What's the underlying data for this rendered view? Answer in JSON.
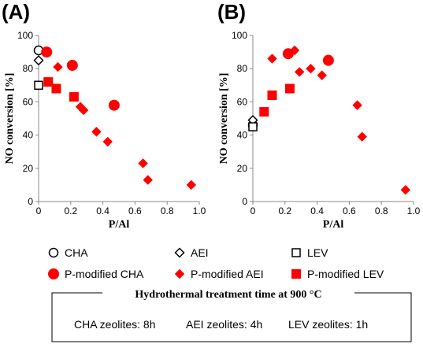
{
  "colors": {
    "modified": "#ff0000",
    "parent_stroke": "#000000",
    "parent_fill": "#ffffff"
  },
  "chart_data": [
    {
      "type": "scatter",
      "panel_label": "(A)",
      "xlabel": "P/Al",
      "ylabel": "NO conversion [%]",
      "xlim": [
        0,
        1.0
      ],
      "ylim": [
        0,
        100
      ],
      "x_ticks": [
        "0",
        "0.2",
        "0.4",
        "0.6",
        "0.8",
        "1.0"
      ],
      "y_ticks": [
        "0",
        "20",
        "40",
        "60",
        "80",
        "100"
      ],
      "series": [
        {
          "name": "CHA",
          "marker": "circle-open",
          "x": [
            0
          ],
          "y": [
            91
          ]
        },
        {
          "name": "AEI",
          "marker": "diamond-open",
          "x": [
            0
          ],
          "y": [
            85
          ]
        },
        {
          "name": "LEV",
          "marker": "square-open",
          "x": [
            0
          ],
          "y": [
            70
          ]
        },
        {
          "name": "P-modified CHA",
          "marker": "circle-filled",
          "x": [
            0.05,
            0.21,
            0.47
          ],
          "y": [
            90,
            82,
            58
          ]
        },
        {
          "name": "P-modified AEI",
          "marker": "diamond-filled",
          "x": [
            0.12,
            0.26,
            0.28,
            0.36,
            0.43,
            0.65,
            0.68,
            0.95
          ],
          "y": [
            81,
            57,
            55,
            42,
            36,
            23,
            13,
            10
          ]
        },
        {
          "name": "P-modified LEV",
          "marker": "square-filled",
          "x": [
            0.06,
            0.11,
            0.22
          ],
          "y": [
            72,
            68,
            63
          ]
        }
      ]
    },
    {
      "type": "scatter",
      "panel_label": "(B)",
      "xlabel": "P/Al",
      "ylabel": "NO conversion [%]",
      "xlim": [
        0,
        1.0
      ],
      "ylim": [
        0,
        100
      ],
      "x_ticks": [
        "0",
        "0.2",
        "0.4",
        "0.6",
        "0.8",
        "1.0"
      ],
      "y_ticks": [
        "0",
        "20",
        "40",
        "60",
        "80",
        "100"
      ],
      "series": [
        {
          "name": "CHA",
          "marker": "circle-open",
          "x": [
            0
          ],
          "y": [
            46
          ]
        },
        {
          "name": "AEI",
          "marker": "diamond-open",
          "x": [
            0
          ],
          "y": [
            49
          ]
        },
        {
          "name": "LEV",
          "marker": "square-open",
          "x": [
            0
          ],
          "y": [
            45
          ]
        },
        {
          "name": "P-modified CHA",
          "marker": "circle-filled",
          "x": [
            0.22,
            0.47
          ],
          "y": [
            89,
            85
          ]
        },
        {
          "name": "P-modified AEI",
          "marker": "diamond-filled",
          "x": [
            0.12,
            0.26,
            0.29,
            0.36,
            0.43,
            0.65,
            0.68,
            0.95
          ],
          "y": [
            86,
            91,
            78,
            80,
            76,
            58,
            39,
            7
          ]
        },
        {
          "name": "P-modified LEV",
          "marker": "square-filled",
          "x": [
            0.07,
            0.12,
            0.23
          ],
          "y": [
            54,
            64,
            68
          ]
        }
      ]
    }
  ],
  "legend": [
    {
      "label": "CHA",
      "marker": "circle-open"
    },
    {
      "label": "AEI",
      "marker": "diamond-open"
    },
    {
      "label": "LEV",
      "marker": "square-open"
    },
    {
      "label": "P-modified CHA",
      "marker": "circle-filled"
    },
    {
      "label": "P-modified AEI",
      "marker": "diamond-filled"
    },
    {
      "label": "P-modified LEV",
      "marker": "square-filled"
    }
  ],
  "note": {
    "title_prefix": "Hydrothermal treatment time at 900 ",
    "title_unit": "°C",
    "items": [
      "CHA zeolites:  8h",
      "AEI zeolites:  4h",
      "LEV zeolites:  1h"
    ]
  }
}
